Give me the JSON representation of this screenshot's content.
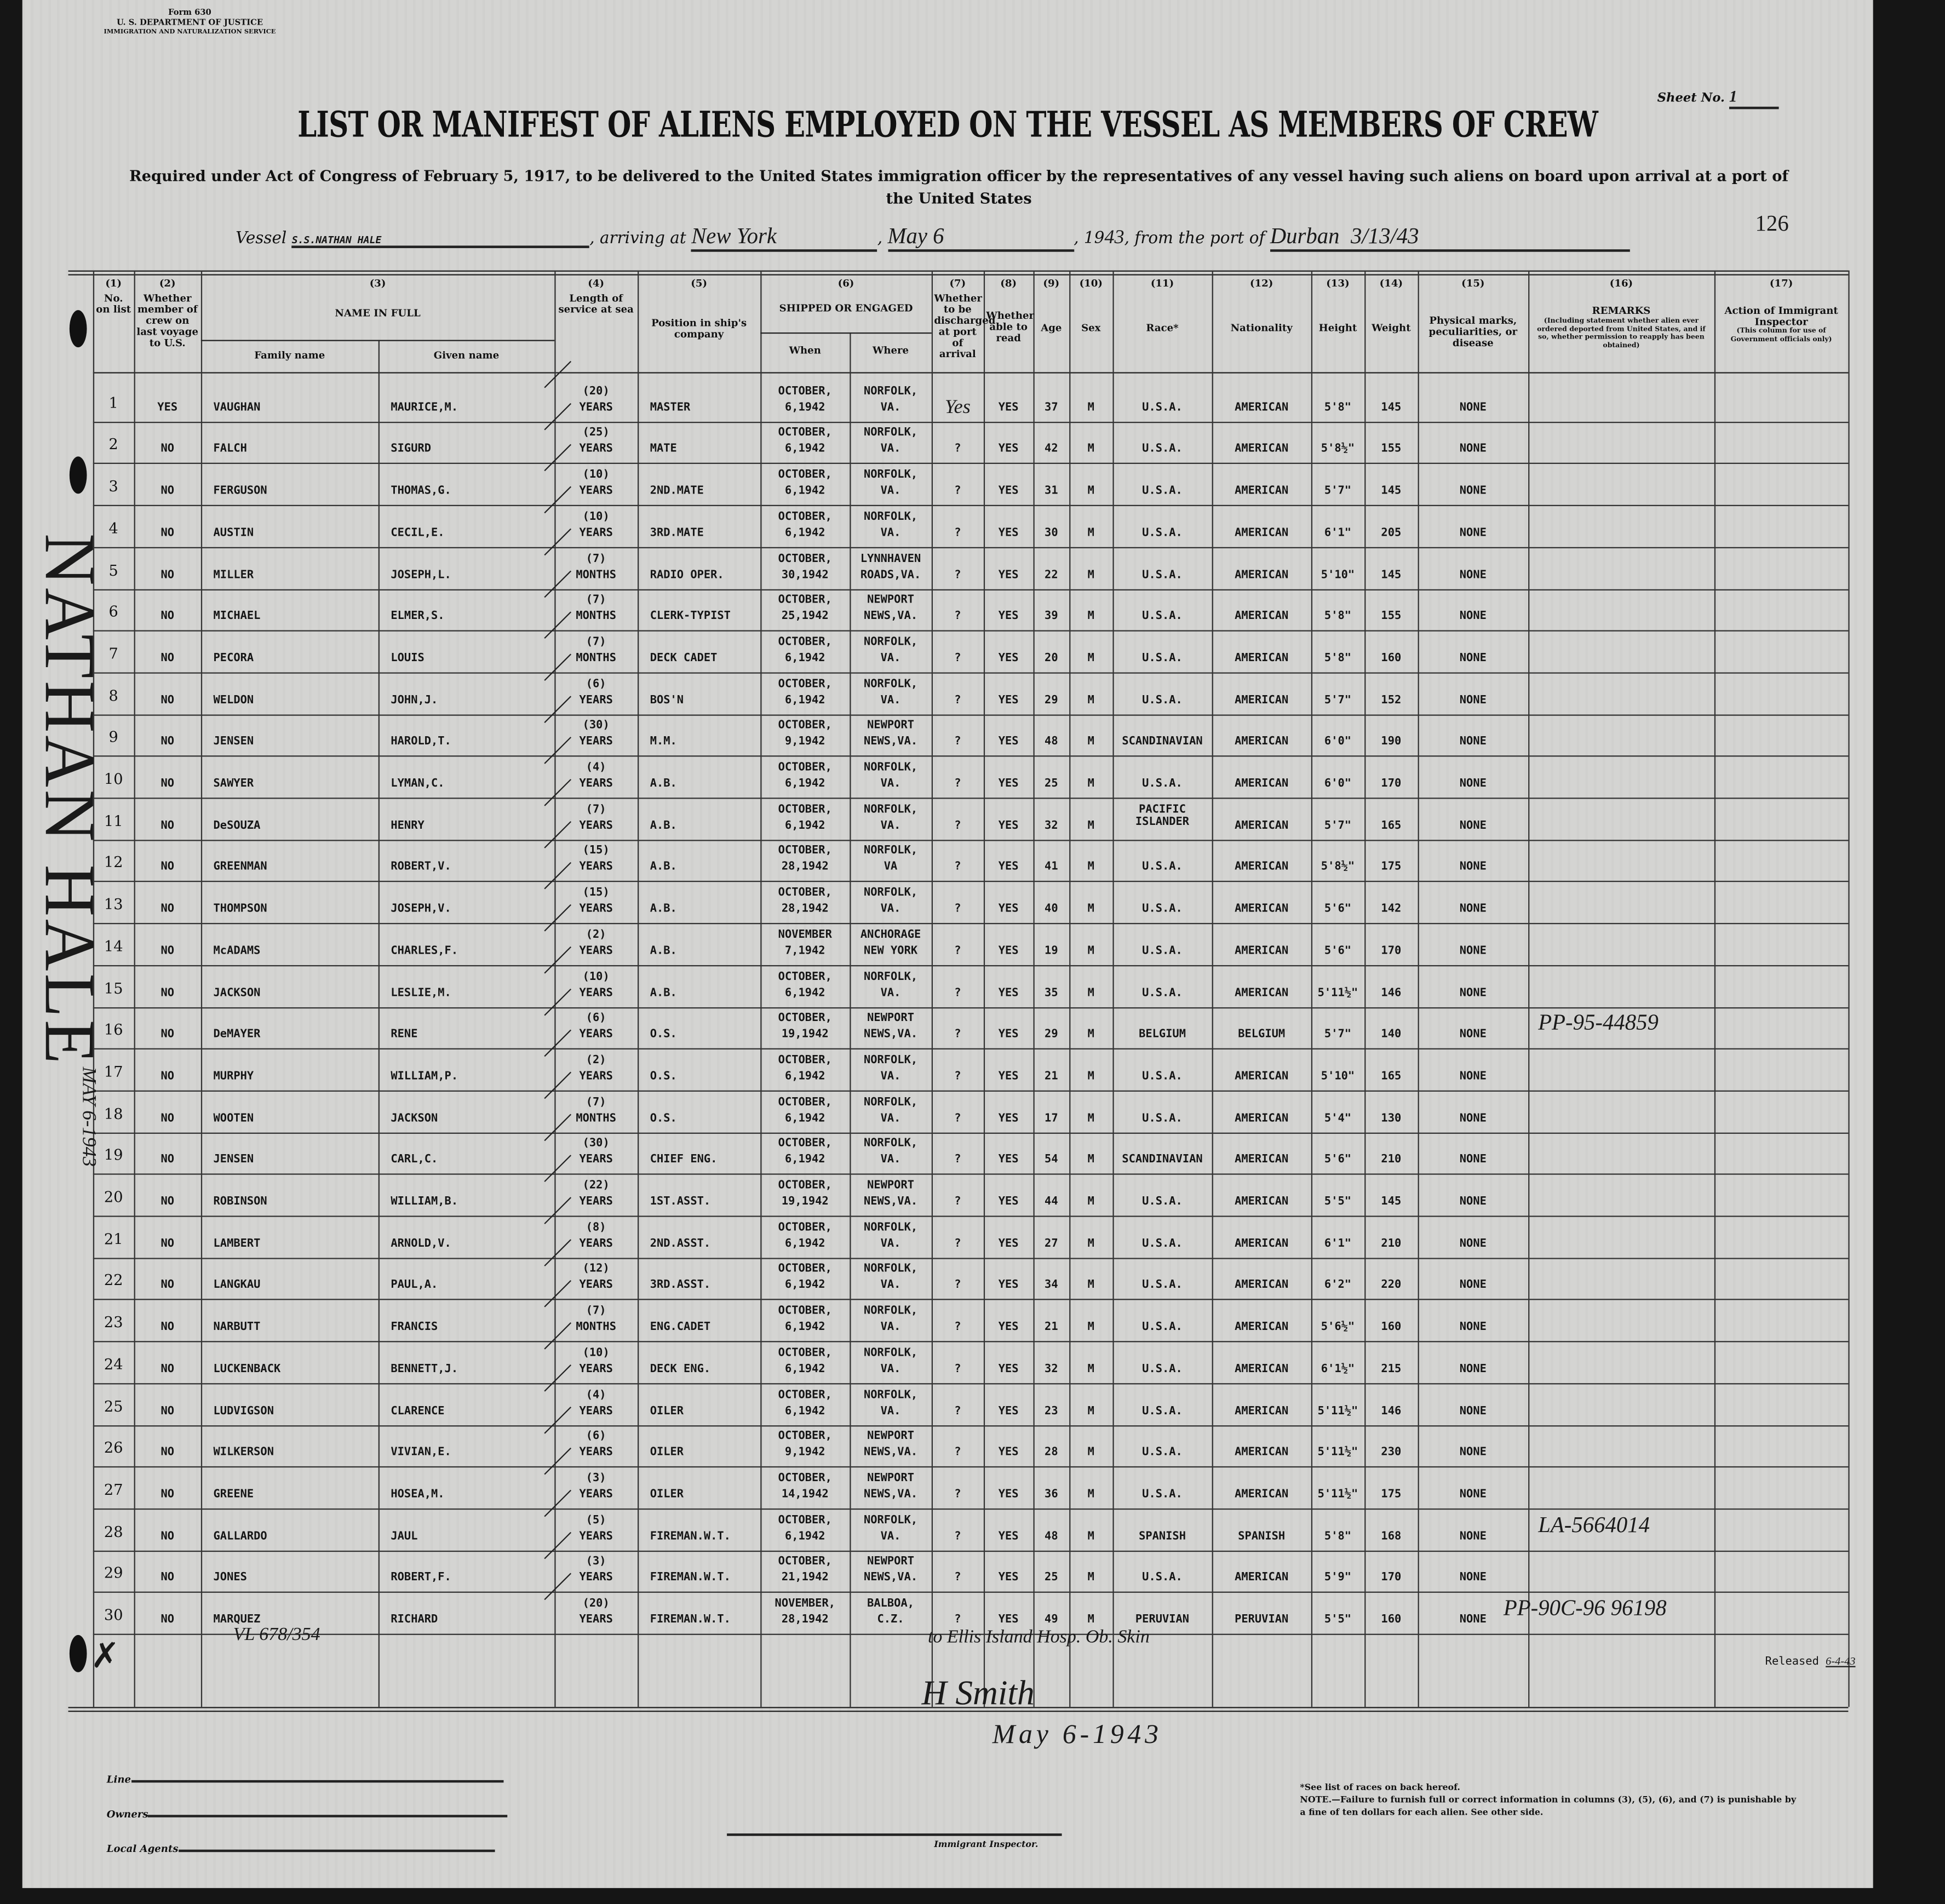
{
  "form": {
    "form_no": "Form 630",
    "department": "U. S. DEPARTMENT OF JUSTICE",
    "service": "IMMIGRATION AND NATURALIZATION SERVICE",
    "sheet_label": "Sheet No.",
    "sheet_no": "1",
    "title": "LIST OR MANIFEST OF ALIENS EMPLOYED ON THE VESSEL AS MEMBERS OF CREW",
    "subtitle": "Required under Act of Congress of February 5, 1917, to be delivered to the United States immigration officer by the representatives of any vessel having such aliens on board upon arrival at a port of the United States",
    "vessel_label": "Vessel",
    "vessel": "S.S.NATHAN HALE",
    "arriving_label": ", arriving at",
    "arriving_at": "New York",
    "date": "May 6",
    "year_prefix": ", 19",
    "year": "43",
    "from_label": ", from the port of",
    "from_port": "Durban",
    "from_date": "3/13/43",
    "page_number": "126"
  },
  "columns": {
    "nums": [
      "(1)",
      "(2)",
      "(3)",
      "(4)",
      "(5)",
      "(6)",
      "(7)",
      "(8)",
      "(9)",
      "(10)",
      "(11)",
      "(12)",
      "(13)",
      "(14)",
      "(15)",
      "(16)",
      "(17)"
    ],
    "no_on_list": "No. on list",
    "member_last_voyage": "Whether member of crew on last voyage to U.S.",
    "name_in_full": "NAME IN FULL",
    "family_name": "Family name",
    "given_name": "Given name",
    "length_of_service": "Length of service at sea",
    "position": "Position in ship's company",
    "shipped": "SHIPPED OR ENGAGED",
    "when": "When",
    "where": "Where",
    "discharged": "Whether to be discharged at port of arrival",
    "able_to_read": "Whether able to read",
    "age": "Age",
    "sex": "Sex",
    "race": "Race*",
    "nationality": "Nationality",
    "height": "Height",
    "weight": "Weight",
    "physical_marks": "Physical marks, peculiarities, or disease",
    "remarks": "REMARKS",
    "remarks_note": "(Including statement whether alien ever ordered deported from United States, and if so, whether permission to reapply has been obtained)",
    "action": "Action of Immigrant Inspector",
    "action_note": "(This column for use of Government officials only)"
  },
  "rows": [
    {
      "no": "1",
      "prev": "YES",
      "family": "VAUGHAN",
      "given": "MAURICE,M.",
      "svc": "(20)",
      "unit": "YEARS",
      "pos": "MASTER",
      "when1": "OCTOBER,",
      "when2": "6,1942",
      "where1": "NORFOLK,",
      "where2": "VA.",
      "dis": "Yes",
      "read": "YES",
      "age": "37",
      "sex": "M",
      "race": "U.S.A.",
      "nat": "AMERICAN",
      "ht": "5'8\"",
      "wt": "145",
      "marks": "NONE",
      "remarks": ""
    },
    {
      "no": "2",
      "prev": "NO",
      "family": "FALCH",
      "given": "SIGURD",
      "svc": "(25)",
      "unit": "YEARS",
      "pos": "MATE",
      "when1": "OCTOBER,",
      "when2": "6,1942",
      "where1": "NORFOLK,",
      "where2": "VA.",
      "dis": "?",
      "read": "YES",
      "age": "42",
      "sex": "M",
      "race": "U.S.A.",
      "nat": "AMERICAN",
      "ht": "5'8½\"",
      "wt": "155",
      "marks": "NONE",
      "remarks": ""
    },
    {
      "no": "3",
      "prev": "NO",
      "family": "FERGUSON",
      "given": "THOMAS,G.",
      "svc": "(10)",
      "unit": "YEARS",
      "pos": "2ND.MATE",
      "when1": "OCTOBER,",
      "when2": "6,1942",
      "where1": "NORFOLK,",
      "where2": "VA.",
      "dis": "?",
      "read": "YES",
      "age": "31",
      "sex": "M",
      "race": "U.S.A.",
      "nat": "AMERICAN",
      "ht": "5'7\"",
      "wt": "145",
      "marks": "NONE",
      "remarks": ""
    },
    {
      "no": "4",
      "prev": "NO",
      "family": "AUSTIN",
      "given": "CECIL,E.",
      "svc": "(10)",
      "unit": "YEARS",
      "pos": "3RD.MATE",
      "when1": "OCTOBER,",
      "when2": "6,1942",
      "where1": "NORFOLK,",
      "where2": "VA.",
      "dis": "?",
      "read": "YES",
      "age": "30",
      "sex": "M",
      "race": "U.S.A.",
      "nat": "AMERICAN",
      "ht": "6'1\"",
      "wt": "205",
      "marks": "NONE",
      "remarks": ""
    },
    {
      "no": "5",
      "prev": "NO",
      "family": "MILLER",
      "given": "JOSEPH,L.",
      "svc": "(7)",
      "unit": "MONTHS",
      "pos": "RADIO OPER.",
      "when1": "OCTOBER,",
      "when2": "30,1942",
      "where1": "LYNNHAVEN",
      "where2": "ROADS,VA.",
      "dis": "?",
      "read": "YES",
      "age": "22",
      "sex": "M",
      "race": "U.S.A.",
      "nat": "AMERICAN",
      "ht": "5'10\"",
      "wt": "145",
      "marks": "NONE",
      "remarks": ""
    },
    {
      "no": "6",
      "prev": "NO",
      "family": "MICHAEL",
      "given": "ELMER,S.",
      "svc": "(7)",
      "unit": "MONTHS",
      "pos": "CLERK-TYPIST",
      "when1": "OCTOBER,",
      "when2": "25,1942",
      "where1": "NEWPORT",
      "where2": "NEWS,VA.",
      "dis": "?",
      "read": "YES",
      "age": "39",
      "sex": "M",
      "race": "U.S.A.",
      "nat": "AMERICAN",
      "ht": "5'8\"",
      "wt": "155",
      "marks": "NONE",
      "remarks": ""
    },
    {
      "no": "7",
      "prev": "NO",
      "family": "PECORA",
      "given": "LOUIS",
      "svc": "(7)",
      "unit": "MONTHS",
      "pos": "DECK CADET",
      "when1": "OCTOBER,",
      "when2": "6,1942",
      "where1": "NORFOLK,",
      "where2": "VA.",
      "dis": "?",
      "read": "YES",
      "age": "20",
      "sex": "M",
      "race": "U.S.A.",
      "nat": "AMERICAN",
      "ht": "5'8\"",
      "wt": "160",
      "marks": "NONE",
      "remarks": ""
    },
    {
      "no": "8",
      "prev": "NO",
      "family": "WELDON",
      "given": "JOHN,J.",
      "svc": "(6)",
      "unit": "YEARS",
      "pos": "BOS'N",
      "when1": "OCTOBER,",
      "when2": "6,1942",
      "where1": "NORFOLK,",
      "where2": "VA.",
      "dis": "?",
      "read": "YES",
      "age": "29",
      "sex": "M",
      "race": "U.S.A.",
      "nat": "AMERICAN",
      "ht": "5'7\"",
      "wt": "152",
      "marks": "NONE",
      "remarks": ""
    },
    {
      "no": "9",
      "prev": "NO",
      "family": "JENSEN",
      "given": "HAROLD,T.",
      "svc": "(30)",
      "unit": "YEARS",
      "pos": "M.M.",
      "when1": "OCTOBER,",
      "when2": "9,1942",
      "where1": "NEWPORT",
      "where2": "NEWS,VA.",
      "dis": "?",
      "read": "YES",
      "age": "48",
      "sex": "M",
      "race": "SCANDINAVIAN",
      "nat": "AMERICAN",
      "ht": "6'0\"",
      "wt": "190",
      "marks": "NONE",
      "remarks": ""
    },
    {
      "no": "10",
      "prev": "NO",
      "family": "SAWYER",
      "given": "LYMAN,C.",
      "svc": "(4)",
      "unit": "YEARS",
      "pos": "A.B.",
      "when1": "OCTOBER,",
      "when2": "6,1942",
      "where1": "NORFOLK,",
      "where2": "VA.",
      "dis": "?",
      "read": "YES",
      "age": "25",
      "sex": "M",
      "race": "U.S.A.",
      "nat": "AMERICAN",
      "ht": "6'0\"",
      "wt": "170",
      "marks": "NONE",
      "remarks": ""
    },
    {
      "no": "11",
      "prev": "NO",
      "family": "DeSOUZA",
      "given": "HENRY",
      "svc": "(7)",
      "unit": "YEARS",
      "pos": "A.B.",
      "when1": "OCTOBER,",
      "when2": "6,1942",
      "where1": "NORFOLK,",
      "where2": "VA.",
      "dis": "?",
      "read": "YES",
      "age": "32",
      "sex": "M",
      "race": "PACIFIC ISLANDER",
      "nat": "AMERICAN",
      "ht": "5'7\"",
      "wt": "165",
      "marks": "NONE",
      "remarks": ""
    },
    {
      "no": "12",
      "prev": "NO",
      "family": "GREENMAN",
      "given": "ROBERT,V.",
      "svc": "(15)",
      "unit": "YEARS",
      "pos": "A.B.",
      "when1": "OCTOBER,",
      "when2": "28,1942",
      "where1": "NORFOLK,",
      "where2": "VA",
      "dis": "?",
      "read": "YES",
      "age": "41",
      "sex": "M",
      "race": "U.S.A.",
      "nat": "AMERICAN",
      "ht": "5'8½\"",
      "wt": "175",
      "marks": "NONE",
      "remarks": ""
    },
    {
      "no": "13",
      "prev": "NO",
      "family": "THOMPSON",
      "given": "JOSEPH,V.",
      "svc": "(15)",
      "unit": "YEARS",
      "pos": "A.B.",
      "when1": "OCTOBER,",
      "when2": "28,1942",
      "where1": "NORFOLK,",
      "where2": "VA.",
      "dis": "?",
      "read": "YES",
      "age": "40",
      "sex": "M",
      "race": "U.S.A.",
      "nat": "AMERICAN",
      "ht": "5'6\"",
      "wt": "142",
      "marks": "NONE",
      "remarks": ""
    },
    {
      "no": "14",
      "prev": "NO",
      "family": "McADAMS",
      "given": "CHARLES,F.",
      "svc": "(2)",
      "unit": "YEARS",
      "pos": "A.B.",
      "when1": "NOVEMBER",
      "when2": "7,1942",
      "where1": "ANCHORAGE",
      "where2": "NEW YORK",
      "dis": "?",
      "read": "YES",
      "age": "19",
      "sex": "M",
      "race": "U.S.A.",
      "nat": "AMERICAN",
      "ht": "5'6\"",
      "wt": "170",
      "marks": "NONE",
      "remarks": ""
    },
    {
      "no": "15",
      "prev": "NO",
      "family": "JACKSON",
      "given": "LESLIE,M.",
      "svc": "(10)",
      "unit": "YEARS",
      "pos": "A.B.",
      "when1": "OCTOBER,",
      "when2": "6,1942",
      "where1": "NORFOLK,",
      "where2": "VA.",
      "dis": "?",
      "read": "YES",
      "age": "35",
      "sex": "M",
      "race": "U.S.A.",
      "nat": "AMERICAN",
      "ht": "5'11½\"",
      "wt": "146",
      "marks": "NONE",
      "remarks": ""
    },
    {
      "no": "16",
      "prev": "NO",
      "family": "DeMAYER",
      "given": "RENE",
      "svc": "(6)",
      "unit": "YEARS",
      "pos": "O.S.",
      "when1": "OCTOBER,",
      "when2": "19,1942",
      "where1": "NEWPORT",
      "where2": "NEWS,VA.",
      "dis": "?",
      "read": "YES",
      "age": "29",
      "sex": "M",
      "race": "BELGIUM",
      "nat": "BELGIUM",
      "ht": "5'7\"",
      "wt": "140",
      "marks": "NONE",
      "remarks": "PP-95-44859"
    },
    {
      "no": "17",
      "prev": "NO",
      "family": "MURPHY",
      "given": "WILLIAM,P.",
      "svc": "(2)",
      "unit": "YEARS",
      "pos": "O.S.",
      "when1": "OCTOBER,",
      "when2": "6,1942",
      "where1": "NORFOLK,",
      "where2": "VA.",
      "dis": "?",
      "read": "YES",
      "age": "21",
      "sex": "M",
      "race": "U.S.A.",
      "nat": "AMERICAN",
      "ht": "5'10\"",
      "wt": "165",
      "marks": "NONE",
      "remarks": ""
    },
    {
      "no": "18",
      "prev": "NO",
      "family": "WOOTEN",
      "given": "JACKSON",
      "svc": "(7)",
      "unit": "MONTHS",
      "pos": "O.S.",
      "when1": "OCTOBER,",
      "when2": "6,1942",
      "where1": "NORFOLK,",
      "where2": "VA.",
      "dis": "?",
      "read": "YES",
      "age": "17",
      "sex": "M",
      "race": "U.S.A.",
      "nat": "AMERICAN",
      "ht": "5'4\"",
      "wt": "130",
      "marks": "NONE",
      "remarks": ""
    },
    {
      "no": "19",
      "prev": "NO",
      "family": "JENSEN",
      "given": "CARL,C.",
      "svc": "(30)",
      "unit": "YEARS",
      "pos": "CHIEF ENG.",
      "when1": "OCTOBER,",
      "when2": "6,1942",
      "where1": "NORFOLK,",
      "where2": "VA.",
      "dis": "?",
      "read": "YES",
      "age": "54",
      "sex": "M",
      "race": "SCANDINAVIAN",
      "nat": "AMERICAN",
      "ht": "5'6\"",
      "wt": "210",
      "marks": "NONE",
      "remarks": ""
    },
    {
      "no": "20",
      "prev": "NO",
      "family": "ROBINSON",
      "given": "WILLIAM,B.",
      "svc": "(22)",
      "unit": "YEARS",
      "pos": "1ST.ASST.",
      "when1": "OCTOBER,",
      "when2": "19,1942",
      "where1": "NEWPORT",
      "where2": "NEWS,VA.",
      "dis": "?",
      "read": "YES",
      "age": "44",
      "sex": "M",
      "race": "U.S.A.",
      "nat": "AMERICAN",
      "ht": "5'5\"",
      "wt": "145",
      "marks": "NONE",
      "remarks": ""
    },
    {
      "no": "21",
      "prev": "NO",
      "family": "LAMBERT",
      "given": "ARNOLD,V.",
      "svc": "(8)",
      "unit": "YEARS",
      "pos": "2ND.ASST.",
      "when1": "OCTOBER,",
      "when2": "6,1942",
      "where1": "NORFOLK,",
      "where2": "VA.",
      "dis": "?",
      "read": "YES",
      "age": "27",
      "sex": "M",
      "race": "U.S.A.",
      "nat": "AMERICAN",
      "ht": "6'1\"",
      "wt": "210",
      "marks": "NONE",
      "remarks": ""
    },
    {
      "no": "22",
      "prev": "NO",
      "family": "LANGKAU",
      "given": "PAUL,A.",
      "svc": "(12)",
      "unit": "YEARS",
      "pos": "3RD.ASST.",
      "when1": "OCTOBER,",
      "when2": "6,1942",
      "where1": "NORFOLK,",
      "where2": "VA.",
      "dis": "?",
      "read": "YES",
      "age": "34",
      "sex": "M",
      "race": "U.S.A.",
      "nat": "AMERICAN",
      "ht": "6'2\"",
      "wt": "220",
      "marks": "NONE",
      "remarks": ""
    },
    {
      "no": "23",
      "prev": "NO",
      "family": "NARBUTT",
      "given": "FRANCIS",
      "svc": "(7)",
      "unit": "MONTHS",
      "pos": "ENG.CADET",
      "when1": "OCTOBER,",
      "when2": "6,1942",
      "where1": "NORFOLK,",
      "where2": "VA.",
      "dis": "?",
      "read": "YES",
      "age": "21",
      "sex": "M",
      "race": "U.S.A.",
      "nat": "AMERICAN",
      "ht": "5'6½\"",
      "wt": "160",
      "marks": "NONE",
      "remarks": ""
    },
    {
      "no": "24",
      "prev": "NO",
      "family": "LUCKENBACK",
      "given": "BENNETT,J.",
      "svc": "(10)",
      "unit": "YEARS",
      "pos": "DECK ENG.",
      "when1": "OCTOBER,",
      "when2": "6,1942",
      "where1": "NORFOLK,",
      "where2": "VA.",
      "dis": "?",
      "read": "YES",
      "age": "32",
      "sex": "M",
      "race": "U.S.A.",
      "nat": "AMERICAN",
      "ht": "6'1½\"",
      "wt": "215",
      "marks": "NONE",
      "remarks": ""
    },
    {
      "no": "25",
      "prev": "NO",
      "family": "LUDVIGSON",
      "given": "CLARENCE",
      "svc": "(4)",
      "unit": "YEARS",
      "pos": "OILER",
      "when1": "OCTOBER,",
      "when2": "6,1942",
      "where1": "NORFOLK,",
      "where2": "VA.",
      "dis": "?",
      "read": "YES",
      "age": "23",
      "sex": "M",
      "race": "U.S.A.",
      "nat": "AMERICAN",
      "ht": "5'11½\"",
      "wt": "146",
      "marks": "NONE",
      "remarks": ""
    },
    {
      "no": "26",
      "prev": "NO",
      "family": "WILKERSON",
      "given": "VIVIAN,E.",
      "svc": "(6)",
      "unit": "YEARS",
      "pos": "OILER",
      "when1": "OCTOBER,",
      "when2": "9,1942",
      "where1": "NEWPORT",
      "where2": "NEWS,VA.",
      "dis": "?",
      "read": "YES",
      "age": "28",
      "sex": "M",
      "race": "U.S.A.",
      "nat": "AMERICAN",
      "ht": "5'11½\"",
      "wt": "230",
      "marks": "NONE",
      "remarks": ""
    },
    {
      "no": "27",
      "prev": "NO",
      "family": "GREENE",
      "given": "HOSEA,M.",
      "svc": "(3)",
      "unit": "YEARS",
      "pos": "OILER",
      "when1": "OCTOBER,",
      "when2": "14,1942",
      "where1": "NEWPORT",
      "where2": "NEWS,VA.",
      "dis": "?",
      "read": "YES",
      "age": "36",
      "sex": "M",
      "race": "U.S.A.",
      "nat": "AMERICAN",
      "ht": "5'11½\"",
      "wt": "175",
      "marks": "NONE",
      "remarks": ""
    },
    {
      "no": "28",
      "prev": "NO",
      "family": "GALLARDO",
      "given": "JAUL",
      "svc": "(5)",
      "unit": "YEARS",
      "pos": "FIREMAN.W.T.",
      "when1": "OCTOBER,",
      "when2": "6,1942",
      "where1": "NORFOLK,",
      "where2": "VA.",
      "dis": "?",
      "read": "YES",
      "age": "48",
      "sex": "M",
      "race": "SPANISH",
      "nat": "SPANISH",
      "ht": "5'8\"",
      "wt": "168",
      "marks": "NONE",
      "remarks": "LA-5664014"
    },
    {
      "no": "29",
      "prev": "NO",
      "family": "JONES",
      "given": "ROBERT,F.",
      "svc": "(3)",
      "unit": "YEARS",
      "pos": "FIREMAN.W.T.",
      "when1": "OCTOBER,",
      "when2": "21,1942",
      "where1": "NEWPORT",
      "where2": "NEWS,VA.",
      "dis": "?",
      "read": "YES",
      "age": "25",
      "sex": "M",
      "race": "U.S.A.",
      "nat": "AMERICAN",
      "ht": "5'9\"",
      "wt": "170",
      "marks": "NONE",
      "remarks": ""
    },
    {
      "no": "30",
      "prev": "NO",
      "family": "MARQUEZ",
      "given": "RICHARD",
      "svc": "(20)",
      "unit": "YEARS",
      "pos": "FIREMAN.W.T.",
      "when1": "NOVEMBER,",
      "when2": "28,1942",
      "where1": "BALBOA,",
      "where2": "C.Z.",
      "dis": "?",
      "read": "YES",
      "age": "49",
      "sex": "M",
      "race": "PERUVIAN",
      "nat": "PERUVIAN",
      "ht": "5'5\"",
      "wt": "160",
      "marks": "NONE",
      "remarks": "PP-90C-96 96198"
    }
  ],
  "annotations": {
    "side_stamp": "NATHAN HALE",
    "side_date": "MAY 6-1943",
    "row30_file": "VL 678/354",
    "row30_note": "to Ellis Island Hosp. Ob. Skin",
    "row30_released_label": "Released",
    "row30_released_date": "6-4-43",
    "signature": "H Smith",
    "signature_date": "May 6-1943"
  },
  "footer": {
    "line_label": "Line",
    "owners_label": "Owners",
    "agents_label": "Local Agents",
    "inspector_label": "Immigrant Inspector.",
    "races_note": "*See list of races on back hereof.",
    "note": "NOTE.—Failure to furnish full or correct information in columns (3), (5), (6), and (7) is punishable by a fine of ten dollars for each alien. See other side."
  }
}
